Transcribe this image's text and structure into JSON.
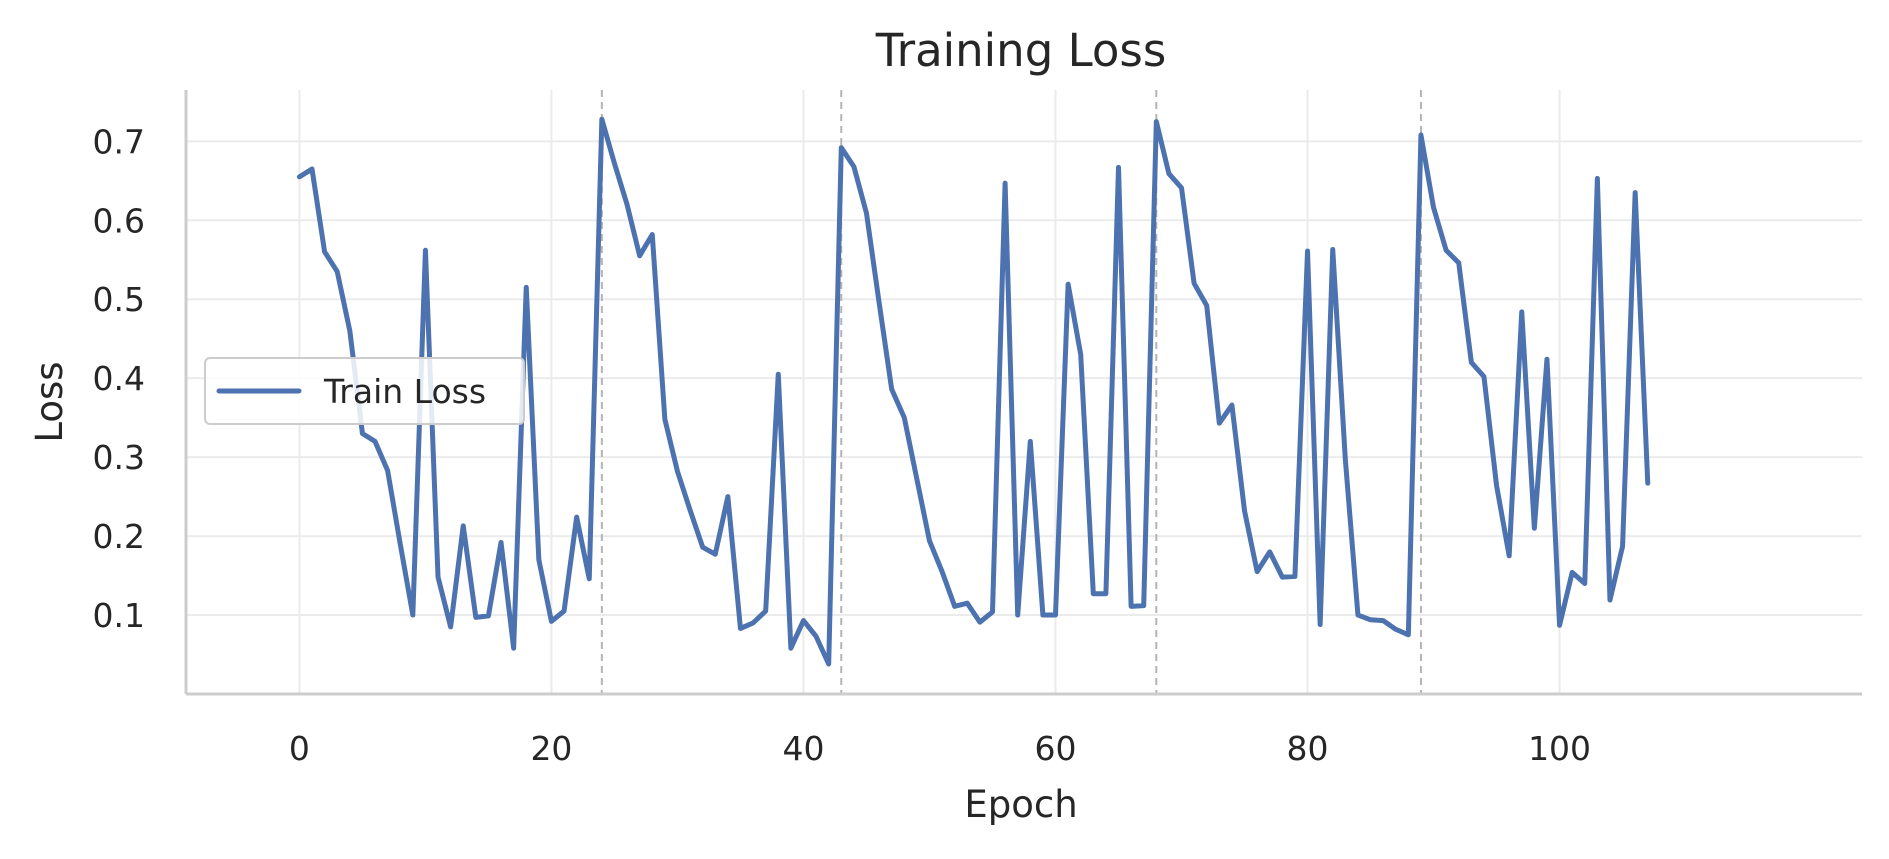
{
  "chart_data": {
    "type": "line",
    "title": "Training Loss",
    "xlabel": "Epoch",
    "ylabel": "Loss",
    "xlim": [
      -9,
      124
    ],
    "ylim": [
      0,
      0.765
    ],
    "xticks": [
      0,
      20,
      40,
      60,
      80,
      100
    ],
    "yticks": [
      0.1,
      0.2,
      0.3,
      0.4,
      0.5,
      0.6,
      0.7
    ],
    "grid": true,
    "legend_position": "center-left",
    "vertical_markers": [
      24,
      43,
      68,
      89
    ],
    "series": [
      {
        "name": "Train Loss",
        "color": "#4c72b0",
        "x": [
          0,
          1,
          2,
          3,
          4,
          5,
          6,
          7,
          8,
          9,
          10,
          11,
          12,
          13,
          14,
          15,
          16,
          17,
          18,
          19,
          20,
          21,
          22,
          23,
          24,
          25,
          26,
          27,
          28,
          29,
          30,
          31,
          32,
          33,
          34,
          35,
          36,
          37,
          38,
          39,
          40,
          41,
          42,
          43,
          44,
          45,
          46,
          47,
          48,
          49,
          50,
          51,
          52,
          53,
          54,
          55,
          56,
          57,
          58,
          59,
          60,
          61,
          62,
          63,
          64,
          65,
          66,
          67,
          68,
          69,
          70,
          71,
          72,
          73,
          74,
          75,
          76,
          77,
          78,
          79,
          80,
          81,
          82,
          83,
          84,
          85,
          86,
          87,
          88,
          89,
          90,
          91,
          92,
          93,
          94,
          95,
          96,
          97,
          98,
          99,
          100,
          101,
          102,
          103,
          104,
          105,
          106,
          107
        ],
        "values": [
          0.655,
          0.665,
          0.56,
          0.535,
          0.46,
          0.33,
          0.32,
          0.283,
          0.19,
          0.1,
          0.562,
          0.148,
          0.085,
          0.213,
          0.097,
          0.099,
          0.192,
          0.058,
          0.515,
          0.17,
          0.092,
          0.105,
          0.224,
          0.146,
          0.728,
          0.672,
          0.62,
          0.555,
          0.582,
          0.348,
          0.282,
          0.233,
          0.186,
          0.177,
          0.25,
          0.083,
          0.09,
          0.105,
          0.405,
          0.058,
          0.093,
          0.073,
          0.038,
          0.692,
          0.668,
          0.609,
          0.496,
          0.386,
          0.35,
          0.272,
          0.194,
          0.155,
          0.111,
          0.115,
          0.091,
          0.104,
          0.647,
          0.1,
          0.32,
          0.1,
          0.1,
          0.519,
          0.43,
          0.127,
          0.127,
          0.667,
          0.111,
          0.112,
          0.725,
          0.659,
          0.641,
          0.52,
          0.492,
          0.343,
          0.366,
          0.232,
          0.155,
          0.18,
          0.148,
          0.149,
          0.561,
          0.088,
          0.563,
          0.297,
          0.1,
          0.094,
          0.093,
          0.082,
          0.075,
          0.708,
          0.616,
          0.562,
          0.546,
          0.42,
          0.402,
          0.264,
          0.175,
          0.484,
          0.21,
          0.424,
          0.087,
          0.154,
          0.14,
          0.653,
          0.119,
          0.187,
          0.635,
          0.267
        ]
      }
    ]
  }
}
